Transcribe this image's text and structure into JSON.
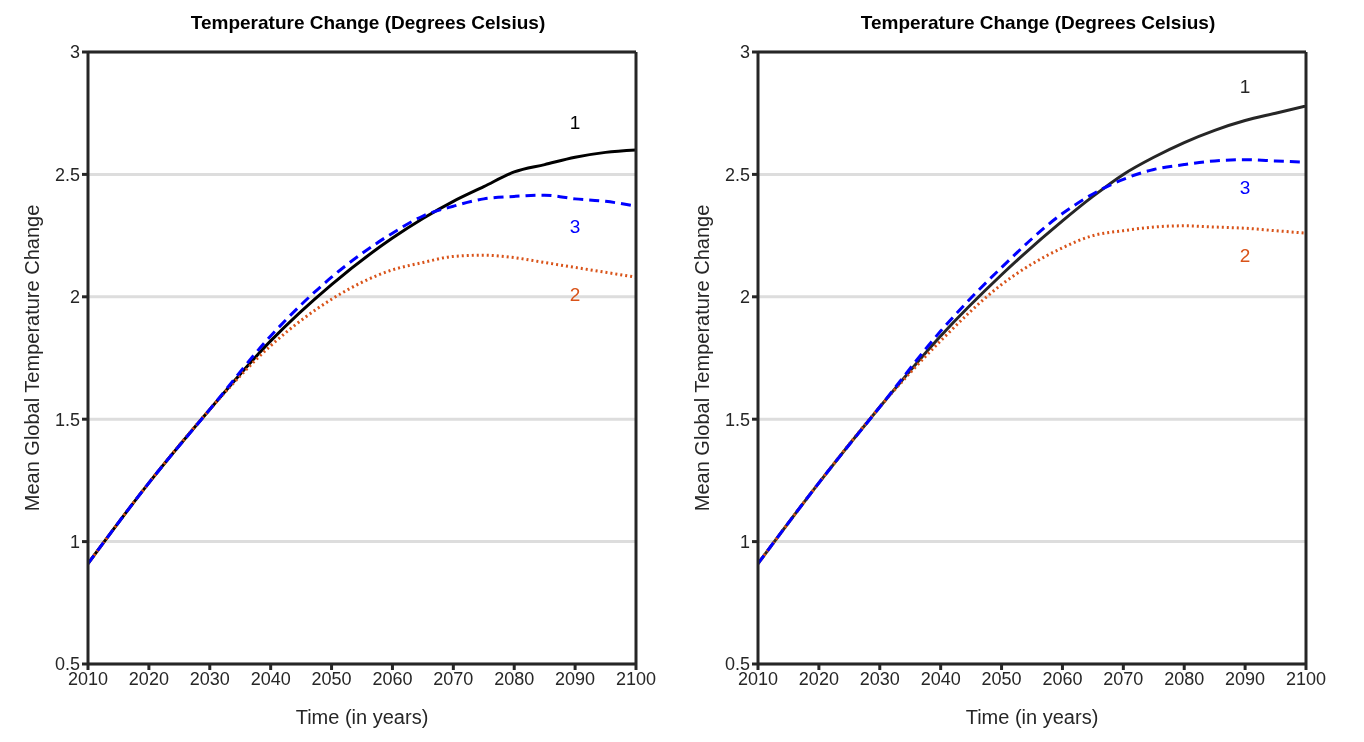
{
  "chart_data": [
    {
      "type": "line",
      "title": "Temperature Change (Degrees Celsius)",
      "xlabel": "Time (in years)",
      "ylabel": "Mean Global Temperature Change",
      "x": [
        2010,
        2020,
        2030,
        2040,
        2050,
        2060,
        2065,
        2070,
        2075,
        2080,
        2085,
        2090,
        2095,
        2100
      ],
      "series": [
        {
          "name": "1",
          "color": "#000000",
          "line_style": "solid",
          "values": [
            0.91,
            1.24,
            1.54,
            1.82,
            2.05,
            2.24,
            2.32,
            2.39,
            2.45,
            2.51,
            2.54,
            2.57,
            2.59,
            2.6
          ]
        },
        {
          "name": "2",
          "color": "#d95319",
          "line_style": "dotted",
          "values": [
            0.91,
            1.24,
            1.54,
            1.8,
            1.99,
            2.11,
            2.14,
            2.165,
            2.17,
            2.16,
            2.14,
            2.12,
            2.1,
            2.08
          ]
        },
        {
          "name": "3",
          "color": "#0000ff",
          "line_style": "dashed",
          "values": [
            0.91,
            1.24,
            1.54,
            1.84,
            2.08,
            2.26,
            2.33,
            2.37,
            2.4,
            2.41,
            2.415,
            2.4,
            2.39,
            2.37
          ]
        }
      ],
      "xlim": [
        2010,
        2100
      ],
      "xticks": [
        2010,
        2020,
        2030,
        2040,
        2050,
        2060,
        2070,
        2080,
        2090,
        2100
      ],
      "ylim": [
        0.5,
        3
      ],
      "yticks": [
        0.5,
        1,
        1.5,
        2,
        2.5,
        3
      ],
      "grid": "y",
      "legend": false
    },
    {
      "type": "line",
      "title": "Temperature Change (Degrees Celsius)",
      "xlabel": "Time (in years)",
      "ylabel": "Mean Global Temperature Change",
      "x": [
        2010,
        2020,
        2030,
        2040,
        2050,
        2060,
        2065,
        2070,
        2075,
        2080,
        2085,
        2090,
        2095,
        2100
      ],
      "series": [
        {
          "name": "1",
          "color": "#262626",
          "line_style": "solid",
          "values": [
            0.91,
            1.24,
            1.55,
            1.84,
            2.09,
            2.31,
            2.41,
            2.5,
            2.57,
            2.63,
            2.68,
            2.72,
            2.75,
            2.78
          ]
        },
        {
          "name": "2",
          "color": "#d95319",
          "line_style": "dotted",
          "values": [
            0.91,
            1.24,
            1.55,
            1.82,
            2.05,
            2.2,
            2.25,
            2.27,
            2.285,
            2.29,
            2.285,
            2.28,
            2.27,
            2.26
          ]
        },
        {
          "name": "3",
          "color": "#0000ff",
          "line_style": "dashed",
          "values": [
            0.91,
            1.24,
            1.55,
            1.86,
            2.12,
            2.34,
            2.42,
            2.48,
            2.52,
            2.54,
            2.555,
            2.56,
            2.555,
            2.55
          ]
        }
      ],
      "xlim": [
        2010,
        2100
      ],
      "xticks": [
        2010,
        2020,
        2030,
        2040,
        2050,
        2060,
        2070,
        2080,
        2090,
        2100
      ],
      "ylim": [
        0.5,
        3
      ],
      "yticks": [
        0.5,
        1,
        1.5,
        2,
        2.5,
        3
      ],
      "grid": "y",
      "legend": false
    }
  ]
}
